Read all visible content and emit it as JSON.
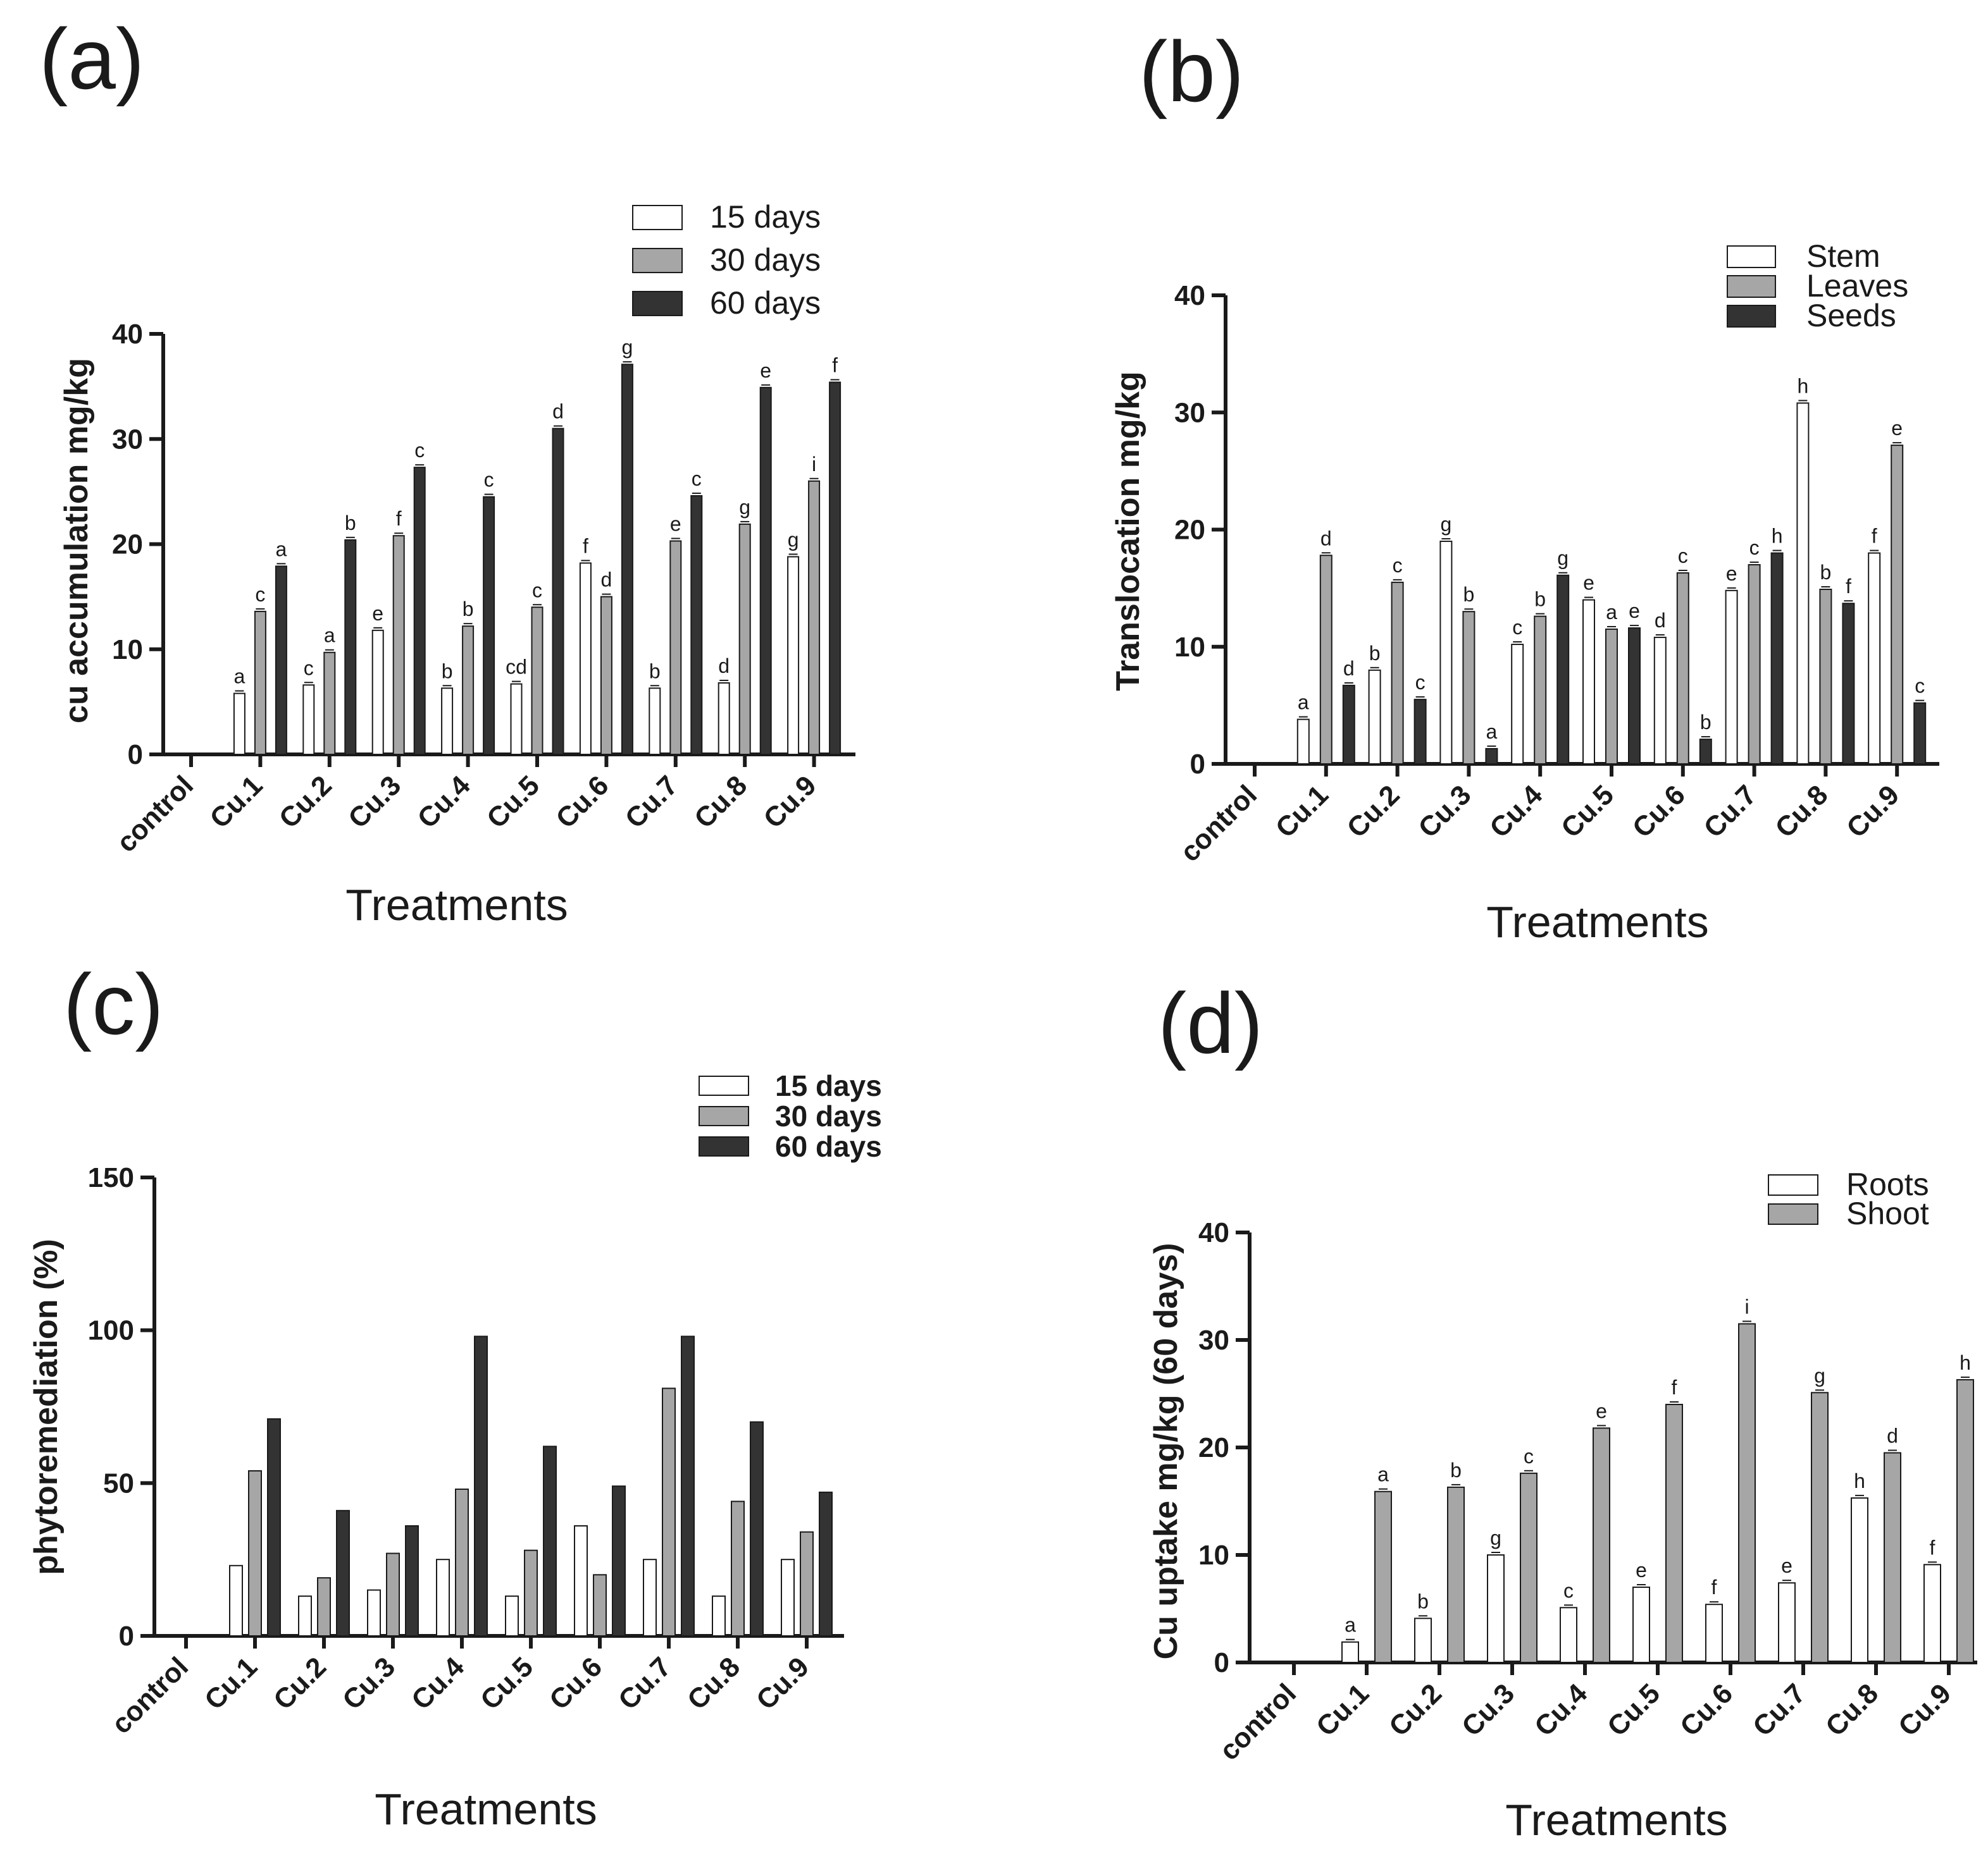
{
  "chart_data": [
    {
      "id": "a",
      "type": "bar",
      "panel_label": "(a)",
      "xlabel": "Treatments",
      "ylabel": "cu accumulation mg/kg",
      "ylim": [
        0,
        40
      ],
      "yticks": [
        "0",
        "10",
        "20",
        "30",
        "40"
      ],
      "categories": [
        "control",
        "Cu.1",
        "Cu.2",
        "Cu.3",
        "Cu.4",
        "Cu.5",
        "Cu.6",
        "Cu.7",
        "Cu.8",
        "Cu.9"
      ],
      "legend_position": "top-right",
      "series": [
        {
          "name": "15 days",
          "color": "#ffffff",
          "values": [
            0,
            5.8,
            6.6,
            11.8,
            6.3,
            6.7,
            18.2,
            6.3,
            6.8,
            18.8
          ],
          "labels": [
            "",
            "a",
            "c",
            "e",
            "b",
            "cd",
            "f",
            "b",
            "d",
            "g"
          ]
        },
        {
          "name": "30 days",
          "color": "#a6a6a6",
          "values": [
            0,
            13.6,
            9.7,
            20.8,
            12.2,
            14.0,
            15.0,
            20.3,
            21.9,
            26.0
          ],
          "labels": [
            "",
            "c",
            "a",
            "f",
            "b",
            "c",
            "d",
            "e",
            "g",
            "i"
          ]
        },
        {
          "name": "60 days",
          "color": "#333333",
          "values": [
            0,
            17.9,
            20.4,
            27.3,
            24.5,
            31.0,
            37.1,
            24.6,
            34.9,
            35.4
          ],
          "labels": [
            "",
            "a",
            "b",
            "c",
            "c",
            "d",
            "g",
            "c",
            "e",
            "f"
          ]
        }
      ]
    },
    {
      "id": "b",
      "type": "bar",
      "panel_label": "(b)",
      "xlabel": "Treatments",
      "ylabel": "Translocation mg/kg",
      "ylim": [
        0,
        40
      ],
      "yticks": [
        "0",
        "10",
        "20",
        "30",
        "40"
      ],
      "categories": [
        "control",
        "Cu.1",
        "Cu.2",
        "Cu.3",
        "Cu.4",
        "Cu.5",
        "Cu.6",
        "Cu.7",
        "Cu.8",
        "Cu.9"
      ],
      "legend_position": "top-right",
      "series": [
        {
          "name": "Stem",
          "color": "#ffffff",
          "values": [
            0,
            3.8,
            8.0,
            19.0,
            10.2,
            14.0,
            10.8,
            14.8,
            30.8,
            18.0
          ],
          "labels": [
            "",
            "a",
            "b",
            "g",
            "c",
            "e",
            "d",
            "e",
            "h",
            "f"
          ]
        },
        {
          "name": "Leaves",
          "color": "#a6a6a6",
          "values": [
            0,
            17.8,
            15.5,
            13.0,
            12.6,
            11.5,
            16.3,
            17.0,
            14.9,
            27.2
          ],
          "labels": [
            "",
            "d",
            "c",
            "b",
            "b",
            "a",
            "c",
            "c",
            "b",
            "e"
          ]
        },
        {
          "name": "Seeds",
          "color": "#333333",
          "values": [
            0,
            6.7,
            5.5,
            1.3,
            16.1,
            11.6,
            2.1,
            18.0,
            13.7,
            5.2
          ],
          "labels": [
            "",
            "d",
            "c",
            "a",
            "g",
            "e",
            "b",
            "h",
            "f",
            "c"
          ]
        }
      ]
    },
    {
      "id": "c",
      "type": "bar",
      "panel_label": "(c)",
      "xlabel": "Treatments",
      "ylabel": "phytoremediation (%)",
      "ylim": [
        0,
        150
      ],
      "yticks": [
        "0",
        "50",
        "100",
        "150"
      ],
      "categories": [
        "control",
        "Cu.1",
        "Cu.2",
        "Cu.3",
        "Cu.4",
        "Cu.5",
        "Cu.6",
        "Cu.7",
        "Cu.8",
        "Cu.9"
      ],
      "legend_position": "top-right",
      "series": [
        {
          "name": "15 days",
          "color": "#ffffff",
          "values": [
            0,
            23,
            13,
            15,
            25,
            13,
            36,
            25,
            13,
            25
          ]
        },
        {
          "name": "30 days",
          "color": "#a6a6a6",
          "values": [
            0,
            54,
            19,
            27,
            48,
            28,
            20,
            81,
            44,
            34
          ]
        },
        {
          "name": "60 days",
          "color": "#333333",
          "values": [
            0,
            71,
            41,
            36,
            98,
            62,
            49,
            98,
            70,
            47
          ]
        }
      ]
    },
    {
      "id": "d",
      "type": "bar",
      "panel_label": "(d)",
      "xlabel": "Treatments",
      "ylabel": "Cu uptake mg/kg (60 days)",
      "ylim": [
        0,
        40
      ],
      "yticks": [
        "0",
        "10",
        "20",
        "30",
        "40"
      ],
      "categories": [
        "control",
        "Cu.1",
        "Cu.2",
        "Cu.3",
        "Cu.4",
        "Cu.5",
        "Cu.6",
        "Cu.7",
        "Cu.8",
        "Cu.9"
      ],
      "legend_position": "top-right",
      "series": [
        {
          "name": "Roots",
          "color": "#ffffff",
          "values": [
            0,
            1.9,
            4.1,
            10.0,
            5.1,
            7.0,
            5.4,
            7.4,
            15.3,
            9.1
          ],
          "labels": [
            "",
            "a",
            "b",
            "g",
            "c",
            "e",
            "f",
            "e",
            "h",
            "f"
          ]
        },
        {
          "name": "Shoot",
          "color": "#a6a6a6",
          "values": [
            0,
            15.9,
            16.3,
            17.6,
            21.8,
            24.0,
            31.5,
            25.1,
            19.5,
            26.3
          ],
          "labels": [
            "",
            "a",
            "b",
            "c",
            "e",
            "f",
            "i",
            "g",
            "d",
            "h"
          ]
        }
      ]
    }
  ]
}
